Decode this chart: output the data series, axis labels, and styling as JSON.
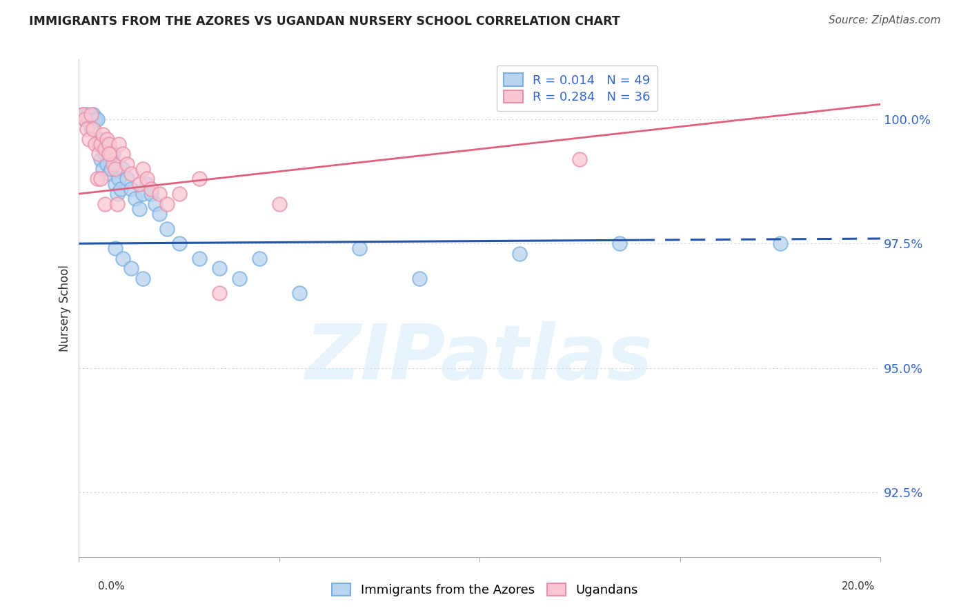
{
  "title": "IMMIGRANTS FROM THE AZORES VS UGANDAN NURSERY SCHOOL CORRELATION CHART",
  "source": "Source: ZipAtlas.com",
  "ylabel": "Nursery School",
  "yticks": [
    92.5,
    95.0,
    97.5,
    100.0
  ],
  "ytick_labels": [
    "92.5%",
    "95.0%",
    "97.5%",
    "100.0%"
  ],
  "xlim": [
    0.0,
    20.0
  ],
  "ylim": [
    91.2,
    101.2
  ],
  "blue_scatter_x": [
    0.1,
    0.15,
    0.2,
    0.25,
    0.3,
    0.35,
    0.4,
    0.45,
    0.5,
    0.55,
    0.6,
    0.65,
    0.7,
    0.75,
    0.8,
    0.85,
    0.9,
    0.95,
    1.0,
    1.05,
    1.1,
    1.2,
    1.3,
    1.4,
    1.5,
    1.6,
    1.7,
    1.8,
    1.9,
    2.0,
    2.2,
    2.5,
    3.0,
    3.5,
    4.0,
    4.5,
    5.5,
    7.0,
    8.5,
    11.0,
    13.5,
    17.5,
    0.3,
    0.5,
    0.7,
    0.9,
    1.1,
    1.3,
    1.6
  ],
  "blue_scatter_y": [
    100.1,
    100.0,
    100.1,
    100.0,
    100.05,
    100.1,
    100.0,
    100.0,
    99.5,
    99.2,
    99.0,
    99.3,
    99.1,
    98.9,
    99.0,
    99.3,
    98.7,
    98.5,
    98.8,
    98.6,
    99.0,
    98.8,
    98.6,
    98.4,
    98.2,
    98.5,
    98.7,
    98.5,
    98.3,
    98.1,
    97.8,
    97.5,
    97.2,
    97.0,
    96.8,
    97.2,
    96.5,
    97.4,
    96.8,
    97.3,
    97.5,
    97.5,
    99.8,
    99.6,
    99.4,
    97.4,
    97.2,
    97.0,
    96.8
  ],
  "pink_scatter_x": [
    0.1,
    0.15,
    0.2,
    0.25,
    0.3,
    0.35,
    0.4,
    0.5,
    0.55,
    0.6,
    0.65,
    0.7,
    0.75,
    0.8,
    0.85,
    0.9,
    1.0,
    1.1,
    1.2,
    1.3,
    1.5,
    1.6,
    1.7,
    1.8,
    2.0,
    2.2,
    2.5,
    3.0,
    3.5,
    5.0,
    12.5,
    0.45,
    0.55,
    0.65,
    0.75,
    0.95
  ],
  "pink_scatter_y": [
    100.1,
    100.0,
    99.8,
    99.6,
    100.1,
    99.8,
    99.5,
    99.3,
    99.5,
    99.7,
    99.4,
    99.6,
    99.5,
    99.3,
    99.1,
    99.0,
    99.5,
    99.3,
    99.1,
    98.9,
    98.7,
    99.0,
    98.8,
    98.6,
    98.5,
    98.3,
    98.5,
    98.8,
    96.5,
    98.3,
    99.2,
    98.8,
    98.8,
    98.3,
    99.3,
    98.3
  ],
  "blue_line_x": [
    0.0,
    20.0
  ],
  "blue_line_y": [
    97.5,
    97.6
  ],
  "blue_line_solid_end_x": 14.0,
  "pink_line_x": [
    0.0,
    20.0
  ],
  "pink_line_y": [
    98.5,
    100.3
  ],
  "watermark": "ZIPatlas",
  "background_color": "#ffffff",
  "grid_color": "#cccccc",
  "legend_upper": [
    "R = 0.014   N = 49",
    "R = 0.284   N = 36"
  ],
  "legend_lower": [
    "Immigrants from the Azores",
    "Ugandans"
  ]
}
